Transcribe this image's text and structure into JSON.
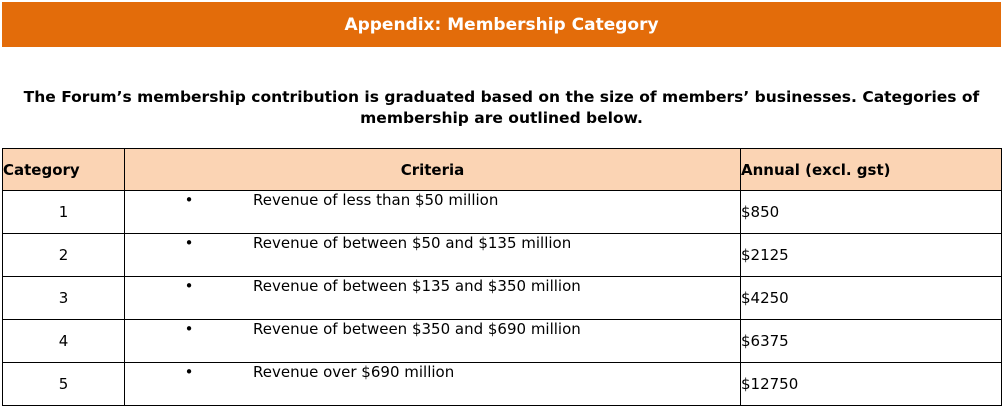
{
  "banner": {
    "title": "Appendix: Membership Category"
  },
  "intro": "The Forum’s membership contribution is graduated based on the size of members’ businesses. Categories of membership are outlined below.",
  "table": {
    "headers": {
      "category": "Category",
      "criteria": "Criteria",
      "annual": "Annual (excl. gst)"
    },
    "bullet_glyph": "•",
    "rows": [
      {
        "category": "1",
        "criteria": "Revenue of less than $50 million",
        "annual": "$850"
      },
      {
        "category": "2",
        "criteria": "Revenue of between $50 and $135 million",
        "annual": "$2125"
      },
      {
        "category": "3",
        "criteria": "Revenue of between $135 and $350 million",
        "annual": "$4250"
      },
      {
        "category": "4",
        "criteria": "Revenue of between $350 and $690 million",
        "annual": "$6375"
      },
      {
        "category": "5",
        "criteria": "Revenue over $690 million",
        "annual": "$12750"
      }
    ]
  },
  "colors": {
    "banner": "#e36c0a",
    "header_fill": "#fbd4b4"
  }
}
